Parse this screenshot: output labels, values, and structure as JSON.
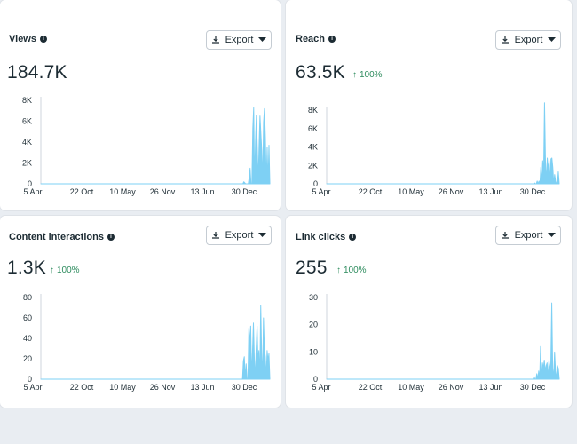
{
  "export_label": "Export",
  "colors": {
    "series": "#7ed0f4",
    "axis": "#cfd6dd",
    "positive": "#2e8c5e"
  },
  "cards": [
    {
      "title": "Views",
      "value": "184.7K",
      "delta": "",
      "y_ticks": [
        "8K",
        "6K",
        "4K",
        "2K",
        "0"
      ],
      "x_ticks": [
        "5 Apr",
        "22 Oct",
        "10 May",
        "26 Nov",
        "13 Jun",
        "30 Dec"
      ]
    },
    {
      "title": "Reach",
      "value": "63.5K",
      "delta": "100%",
      "y_ticks": [
        "8K",
        "6K",
        "4K",
        "2K",
        "0"
      ],
      "x_ticks": [
        "5 Apr",
        "22 Oct",
        "10 May",
        "26 Nov",
        "13 Jun",
        "30 Dec"
      ]
    },
    {
      "title": "Content interactions",
      "value": "1.3K",
      "delta": "100%",
      "y_ticks": [
        "80",
        "60",
        "40",
        "20",
        "0"
      ],
      "x_ticks": [
        "5 Apr",
        "22 Oct",
        "10 May",
        "26 Nov",
        "13 Jun",
        "30 Dec"
      ]
    },
    {
      "title": "Link clicks",
      "value": "255",
      "delta": "100%",
      "y_ticks": [
        "30",
        "20",
        "10",
        "0"
      ],
      "x_ticks": [
        "5 Apr",
        "22 Oct",
        "10 May",
        "26 Nov",
        "13 Jun",
        "30 Dec"
      ]
    }
  ],
  "chart_data": [
    {
      "type": "area",
      "title": "Views",
      "ylim": [
        0,
        8000
      ],
      "values": [
        0,
        0,
        0,
        0,
        0,
        0,
        0,
        0,
        0,
        0,
        0,
        0,
        0,
        0,
        0,
        0,
        0,
        0,
        0,
        0,
        0,
        0,
        0,
        0,
        0,
        0,
        0,
        0,
        0,
        0,
        0,
        0,
        0,
        0,
        0,
        0,
        0,
        0,
        0,
        0,
        0,
        0,
        0,
        0,
        0,
        0,
        0,
        0,
        0,
        0,
        0,
        0,
        0,
        0,
        0,
        0,
        0,
        0,
        0,
        0,
        0,
        0,
        0,
        0,
        0,
        0,
        0,
        0,
        0,
        0,
        0,
        0,
        0,
        0,
        0,
        0,
        0,
        0,
        0,
        0,
        0,
        0,
        0,
        0,
        0,
        0,
        0,
        0,
        0,
        0,
        0,
        0,
        0,
        0,
        0,
        0,
        0,
        0,
        0,
        0,
        0,
        0,
        0,
        0,
        0,
        0,
        0,
        0,
        0,
        0,
        0,
        0,
        0,
        0,
        0,
        0,
        0,
        0,
        0,
        0,
        0,
        0,
        0,
        0,
        0,
        0,
        0,
        0,
        0,
        0,
        0,
        0,
        0,
        0,
        0,
        0,
        0,
        0,
        0,
        0,
        0,
        0,
        0,
        0,
        0,
        0,
        0,
        0,
        0,
        0,
        0,
        0,
        0,
        0,
        0,
        0,
        0,
        0,
        0,
        0,
        0,
        0,
        0,
        0,
        0,
        0,
        0,
        0,
        0,
        0,
        0,
        0,
        0,
        0,
        0,
        0,
        0,
        0,
        0,
        0,
        0,
        0,
        0,
        0,
        0,
        0,
        0,
        0,
        0,
        0,
        0,
        0,
        0,
        0,
        0,
        0,
        0,
        0,
        0,
        0,
        0,
        0,
        0,
        0,
        0,
        0,
        0,
        0,
        0,
        0,
        0,
        0,
        0,
        0,
        0,
        0,
        0,
        0,
        0,
        0,
        0,
        0,
        0,
        0,
        0,
        0,
        200,
        100,
        0,
        0,
        0,
        0,
        600,
        1500,
        0,
        0,
        5300,
        7300,
        0,
        4000,
        6600,
        3500,
        0,
        3600,
        6500,
        4800,
        3200,
        0,
        5900,
        7200,
        4500,
        0,
        3500,
        0,
        3700,
        0
      ]
    },
    {
      "type": "area",
      "title": "Reach",
      "ylim": [
        0,
        8000
      ],
      "values": [
        0,
        0,
        0,
        0,
        0,
        0,
        0,
        0,
        0,
        0,
        0,
        0,
        0,
        0,
        0,
        0,
        0,
        0,
        0,
        0,
        0,
        0,
        0,
        0,
        0,
        0,
        0,
        0,
        0,
        0,
        0,
        0,
        0,
        0,
        0,
        0,
        0,
        0,
        0,
        0,
        0,
        0,
        0,
        0,
        0,
        0,
        0,
        0,
        0,
        0,
        0,
        0,
        0,
        0,
        0,
        0,
        0,
        0,
        0,
        0,
        0,
        0,
        0,
        0,
        0,
        0,
        0,
        0,
        0,
        0,
        0,
        0,
        0,
        0,
        0,
        0,
        0,
        0,
        0,
        0,
        0,
        0,
        0,
        0,
        0,
        0,
        0,
        0,
        0,
        0,
        0,
        0,
        0,
        0,
        0,
        0,
        0,
        0,
        0,
        0,
        0,
        0,
        0,
        0,
        0,
        0,
        0,
        0,
        0,
        0,
        0,
        0,
        0,
        0,
        0,
        0,
        0,
        0,
        0,
        0,
        0,
        0,
        0,
        0,
        0,
        0,
        0,
        0,
        0,
        0,
        0,
        0,
        0,
        0,
        0,
        0,
        0,
        0,
        0,
        0,
        0,
        0,
        0,
        0,
        0,
        0,
        0,
        0,
        0,
        0,
        0,
        0,
        0,
        0,
        0,
        0,
        0,
        0,
        0,
        0,
        0,
        0,
        0,
        0,
        0,
        0,
        0,
        0,
        0,
        0,
        0,
        0,
        0,
        0,
        0,
        0,
        0,
        0,
        0,
        0,
        0,
        0,
        0,
        0,
        0,
        0,
        0,
        0,
        0,
        0,
        0,
        0,
        0,
        0,
        0,
        0,
        0,
        0,
        0,
        0,
        0,
        0,
        0,
        0,
        0,
        0,
        0,
        0,
        0,
        0,
        0,
        0,
        0,
        0,
        0,
        0,
        0,
        0,
        0,
        0,
        0,
        0,
        0,
        0,
        0,
        0,
        100,
        0,
        0,
        300,
        0,
        300,
        0,
        1800,
        0,
        2500,
        1000,
        8800,
        2500,
        0,
        2800,
        1500,
        2500,
        0,
        2700,
        2800,
        1800,
        0,
        1000,
        300,
        0,
        0,
        1300,
        0
      ]
    },
    {
      "type": "area",
      "title": "Content interactions",
      "ylim": [
        0,
        80
      ],
      "values": [
        0,
        0,
        0,
        0,
        0,
        0,
        0,
        0,
        0,
        0,
        0,
        0,
        0,
        0,
        0,
        0,
        0,
        0,
        0,
        0,
        0,
        0,
        0,
        0,
        0,
        0,
        0,
        0,
        0,
        0,
        0,
        0,
        0,
        0,
        0,
        0,
        0,
        0,
        0,
        0,
        0,
        0,
        0,
        0,
        0,
        0,
        0,
        0,
        0,
        0,
        0,
        0,
        0,
        0,
        0,
        0,
        0,
        0,
        0,
        0,
        0,
        0,
        0,
        0,
        0,
        0,
        0,
        0,
        0,
        0,
        0,
        0,
        0,
        0,
        0,
        0,
        0,
        0,
        0,
        0,
        0,
        0,
        0,
        0,
        0,
        0,
        0,
        0,
        0,
        0,
        0,
        0,
        0,
        0,
        0,
        0,
        0,
        0,
        0,
        0,
        0,
        0,
        0,
        0,
        0,
        0,
        0,
        0,
        0,
        0,
        0,
        0,
        0,
        0,
        0,
        0,
        0,
        0,
        0,
        0,
        0,
        0,
        0,
        0,
        0,
        0,
        0,
        0,
        0,
        0,
        0,
        0,
        0,
        0,
        0,
        0,
        0,
        0,
        0,
        0,
        0,
        0,
        0,
        0,
        0,
        0,
        0,
        0,
        0,
        0,
        0,
        0,
        0,
        0,
        0,
        0,
        0,
        0,
        0,
        0,
        0,
        0,
        0,
        0,
        0,
        0,
        0,
        0,
        0,
        0,
        0,
        0,
        0,
        0,
        0,
        0,
        0,
        0,
        0,
        0,
        0,
        0,
        0,
        0,
        0,
        0,
        0,
        0,
        0,
        0,
        0,
        0,
        0,
        0,
        0,
        0,
        0,
        0,
        0,
        0,
        0,
        0,
        0,
        0,
        0,
        0,
        0,
        0,
        0,
        0,
        0,
        0,
        0,
        0,
        0,
        0,
        0,
        0,
        0,
        0,
        0,
        0,
        18,
        22,
        0,
        15,
        0,
        0,
        50,
        35,
        52,
        0,
        28,
        55,
        20,
        0,
        30,
        52,
        18,
        28,
        0,
        72,
        25,
        0,
        60,
        30,
        22,
        0,
        28,
        18,
        25,
        0
      ]
    },
    {
      "type": "area",
      "title": "Link clicks",
      "ylim": [
        0,
        30
      ],
      "values": [
        0,
        0,
        0,
        0,
        0,
        0,
        0,
        0,
        0,
        0,
        0,
        0,
        0,
        0,
        0,
        0,
        0,
        0,
        0,
        0,
        0,
        0,
        0,
        0,
        0,
        0,
        0,
        0,
        0,
        0,
        0,
        0,
        0,
        0,
        0,
        0,
        0,
        0,
        0,
        0,
        0,
        0,
        0,
        0,
        0,
        0,
        0,
        0,
        0,
        0,
        0,
        0,
        0,
        0,
        0,
        0,
        0,
        0,
        0,
        0,
        0,
        0,
        0,
        0,
        0,
        0,
        0,
        0,
        0,
        0,
        0,
        0,
        0,
        0,
        0,
        0,
        0,
        0,
        0,
        0,
        0,
        0,
        0,
        0,
        0,
        0,
        0,
        0,
        0,
        0,
        0,
        0,
        0,
        0,
        0,
        0,
        0,
        0,
        0,
        0,
        0,
        0,
        0,
        0,
        0,
        0,
        0,
        0,
        0,
        0,
        0,
        0,
        0,
        0,
        0,
        0,
        0,
        0,
        0,
        0,
        0,
        0,
        0,
        0,
        0,
        0,
        0,
        0,
        0,
        0,
        0,
        0,
        0,
        0,
        0,
        0,
        0,
        0,
        0,
        0,
        0,
        0,
        0,
        0,
        0,
        0,
        0,
        0,
        0,
        0,
        0,
        0,
        0,
        0,
        0,
        0,
        0,
        0,
        0,
        0,
        0,
        0,
        0,
        0,
        0,
        0,
        0,
        0,
        0,
        0,
        0,
        0,
        0,
        0,
        0,
        0,
        0,
        0,
        0,
        0,
        0,
        0,
        0,
        0,
        0,
        0,
        0,
        0,
        0,
        0,
        0,
        0,
        0,
        0,
        0,
        0,
        0,
        0,
        0,
        0,
        0,
        0,
        0,
        0,
        0,
        0,
        0,
        0,
        0,
        0,
        0,
        0,
        0,
        0,
        0,
        0,
        0,
        0,
        0,
        0,
        0,
        0,
        1,
        0,
        0,
        2,
        0,
        3,
        0,
        12,
        0,
        6,
        4,
        7,
        3,
        5,
        6,
        0,
        7,
        3,
        6,
        28,
        4,
        0,
        10,
        3,
        0,
        5,
        4,
        0
      ]
    }
  ]
}
